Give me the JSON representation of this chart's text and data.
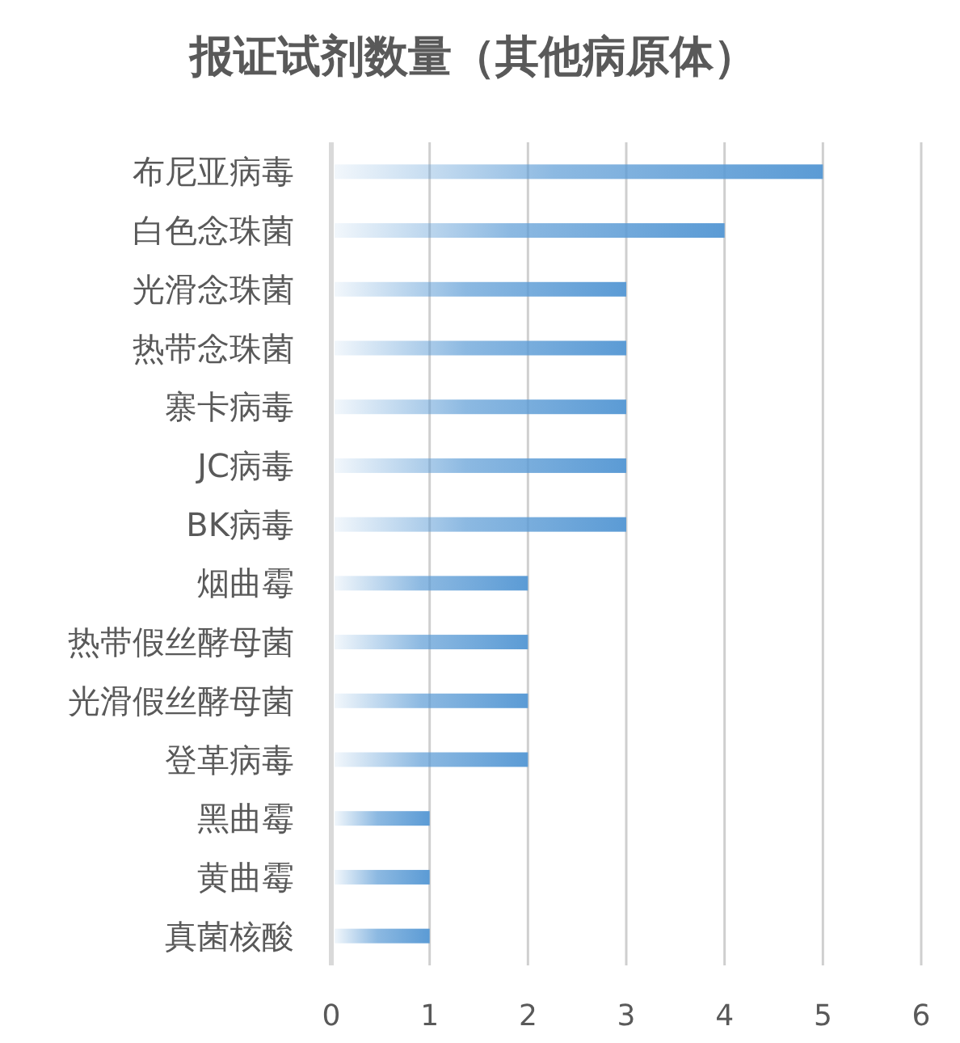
{
  "chart_data": {
    "type": "bar",
    "orientation": "horizontal",
    "title": "报证试剂数量（其他病原体）",
    "categories": [
      "布尼亚病毒",
      "白色念珠菌",
      "光滑念珠菌",
      "热带念珠菌",
      "寨卡病毒",
      "JC病毒",
      "BK病毒",
      "烟曲霉",
      "热带假丝酵母菌",
      "光滑假丝酵母菌",
      "登革病毒",
      "黑曲霉",
      "黄曲霉",
      "真菌核酸"
    ],
    "values": [
      5,
      4,
      3,
      3,
      3,
      3,
      3,
      2,
      2,
      2,
      2,
      1,
      1,
      1
    ],
    "color": "#5b9bd5",
    "xlim": [
      0,
      6
    ],
    "xticks": [
      0,
      1,
      2,
      3,
      4,
      5,
      6
    ],
    "grid": "x"
  }
}
